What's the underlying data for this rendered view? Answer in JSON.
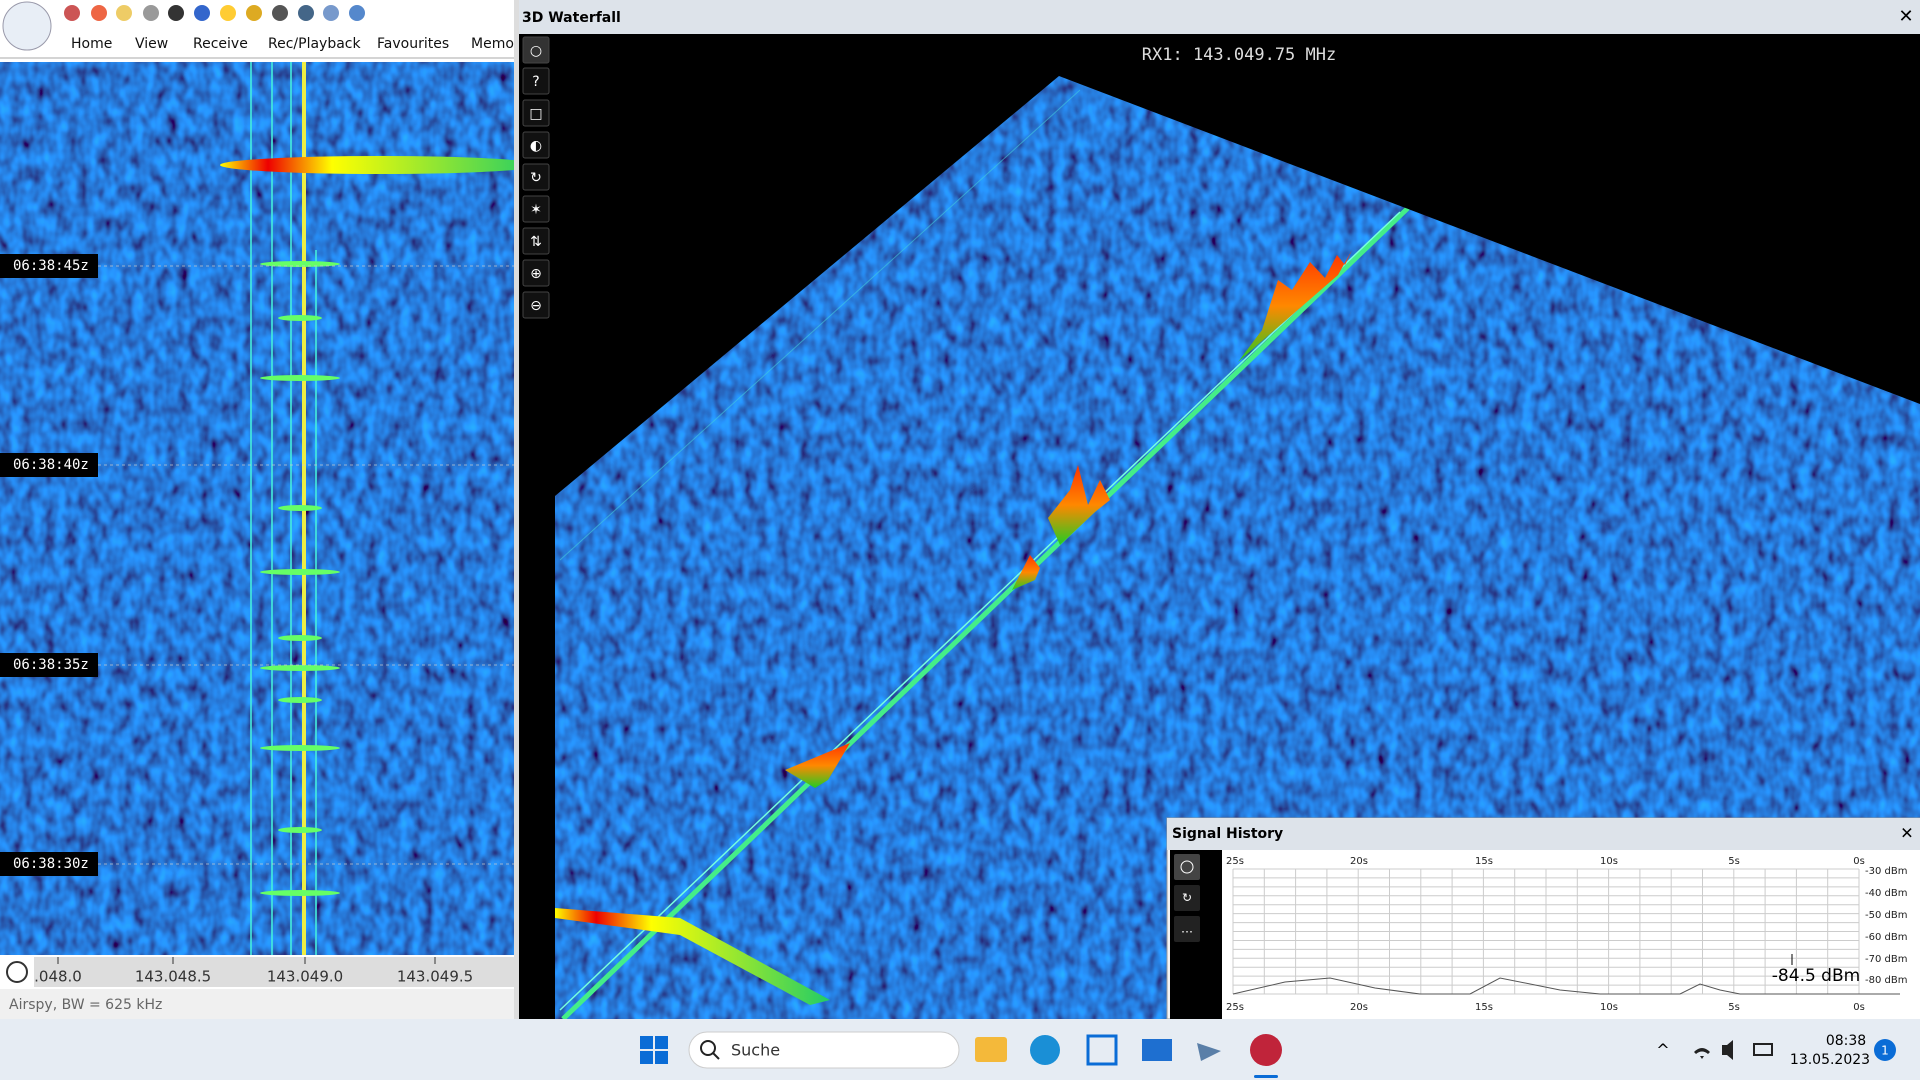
{
  "toolbar": {
    "menu": [
      "Home",
      "View",
      "Receive",
      "Rec/Playback",
      "Favourites",
      "Memor"
    ]
  },
  "waterfall": {
    "timestamps": [
      "06:38:45z",
      "06:38:40z",
      "06:38:35z",
      "06:38:30z"
    ],
    "frequency_labels": [
      ".048.0",
      "143.048.5",
      "143.049.0",
      "143.049.5"
    ],
    "status": "Airspy, BW = 625 kHz"
  },
  "waterfall_3d": {
    "title": "3D Waterfall",
    "frequency_readout": "RX1: 143.049.75 MHz",
    "help_button": "?"
  },
  "signal_history": {
    "title": "Signal History",
    "time_labels": [
      "25s",
      "20s",
      "15s",
      "10s",
      "5s",
      "0s"
    ],
    "level_labels": [
      "-30 dBm",
      "-40 dBm",
      "-50 dBm",
      "-60 dBm",
      "-70 dBm",
      "-80 dBm"
    ],
    "current_level": "-84.5 dBm"
  },
  "taskbar": {
    "search": "Suche",
    "time": "08:38",
    "date": "13.05.2023",
    "notifications": "1"
  }
}
